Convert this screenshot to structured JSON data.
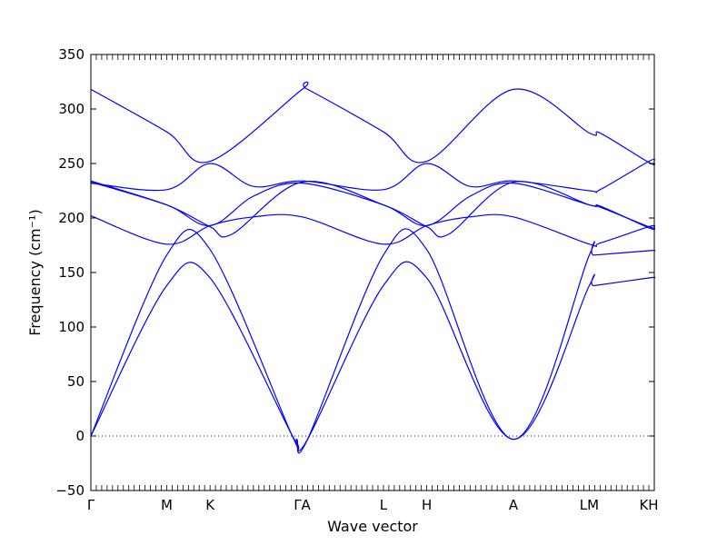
{
  "chart_data": {
    "type": "line",
    "title": "",
    "xlabel": "Wave vector",
    "ylabel": "Frequency (cm⁻¹)",
    "ylim": [
      -50,
      350
    ],
    "yticks": [
      -50,
      0,
      50,
      100,
      150,
      200,
      250,
      300,
      350
    ],
    "grid": false,
    "zero_line": {
      "value": 0,
      "style": "dotted"
    },
    "xlim": [
      0,
      5.2
    ],
    "x_ticks": [
      {
        "label": "Γ",
        "x": 0.0
      },
      {
        "label": "M",
        "x": 0.7
      },
      {
        "label": "K",
        "x": 1.1
      },
      {
        "label": "ΓA",
        "x": 1.95
      },
      {
        "label": "L",
        "x": 2.7
      },
      {
        "label": "H",
        "x": 3.1
      },
      {
        "label": "A",
        "x": 3.9
      },
      {
        "label": "LM",
        "x": 4.6
      },
      {
        "label": "KH",
        "x": 5.15
      }
    ],
    "series": [
      {
        "color": "#0000ff",
        "x": [
          0.0,
          0.7,
          1.1,
          1.85,
          1.9,
          2.0,
          2.7,
          3.1,
          3.9,
          4.6,
          4.65,
          5.15,
          5.2
        ],
        "y": [
          0,
          138,
          145,
          2,
          -3,
          -3,
          138,
          145,
          -3,
          138,
          138,
          145,
          145
        ]
      },
      {
        "color": "#0000ff",
        "x": [
          0.0,
          0.7,
          1.1,
          1.85,
          1.9,
          2.0,
          2.7,
          3.1,
          3.9,
          4.6,
          4.65,
          5.15,
          5.2
        ],
        "y": [
          0,
          166,
          171,
          2,
          -3,
          -3,
          166,
          171,
          -3,
          166,
          166,
          170,
          170
        ]
      },
      {
        "color": "#0000ff",
        "x": [
          0.0,
          0.7,
          1.1,
          1.5,
          1.95,
          2.7,
          3.1,
          3.5,
          3.9,
          4.6,
          4.7,
          5.15,
          5.2
        ],
        "y": [
          202,
          176,
          193,
          201,
          201,
          176,
          193,
          201,
          201,
          176,
          177,
          192,
          192
        ]
      },
      {
        "color": "#0000ff",
        "x": [
          0.0,
          0.7,
          1.1,
          1.3,
          1.95,
          2.7,
          3.1,
          3.3,
          3.9,
          4.6,
          4.7,
          5.15,
          5.2
        ],
        "y": [
          234,
          212,
          192,
          185,
          233,
          212,
          192,
          185,
          233,
          212,
          210,
          192,
          192
        ]
      },
      {
        "color": "#0000ff",
        "x": [
          0.0,
          0.7,
          1.1,
          1.5,
          1.95,
          2.7,
          3.1,
          3.5,
          3.9,
          4.6,
          4.7,
          5.15,
          5.2
        ],
        "y": [
          233,
          212,
          193,
          220,
          232,
          212,
          193,
          220,
          232,
          212,
          211,
          191,
          191
        ]
      },
      {
        "color": "#0000ff",
        "x": [
          0.0,
          0.7,
          1.1,
          1.5,
          1.95,
          2.7,
          3.1,
          3.5,
          3.9,
          4.6,
          4.7,
          5.15,
          5.2
        ],
        "y": [
          232,
          226,
          250,
          229,
          234,
          226,
          250,
          229,
          234,
          225,
          226,
          252,
          252
        ]
      },
      {
        "color": "#0000ff",
        "x": [
          0.0,
          0.7,
          1.1,
          1.95,
          2.0,
          2.7,
          3.1,
          3.9,
          4.6,
          4.7,
          5.15,
          5.2
        ],
        "y": [
          318,
          279,
          252,
          318,
          318,
          279,
          252,
          318,
          278,
          278,
          251,
          251
        ]
      }
    ]
  }
}
